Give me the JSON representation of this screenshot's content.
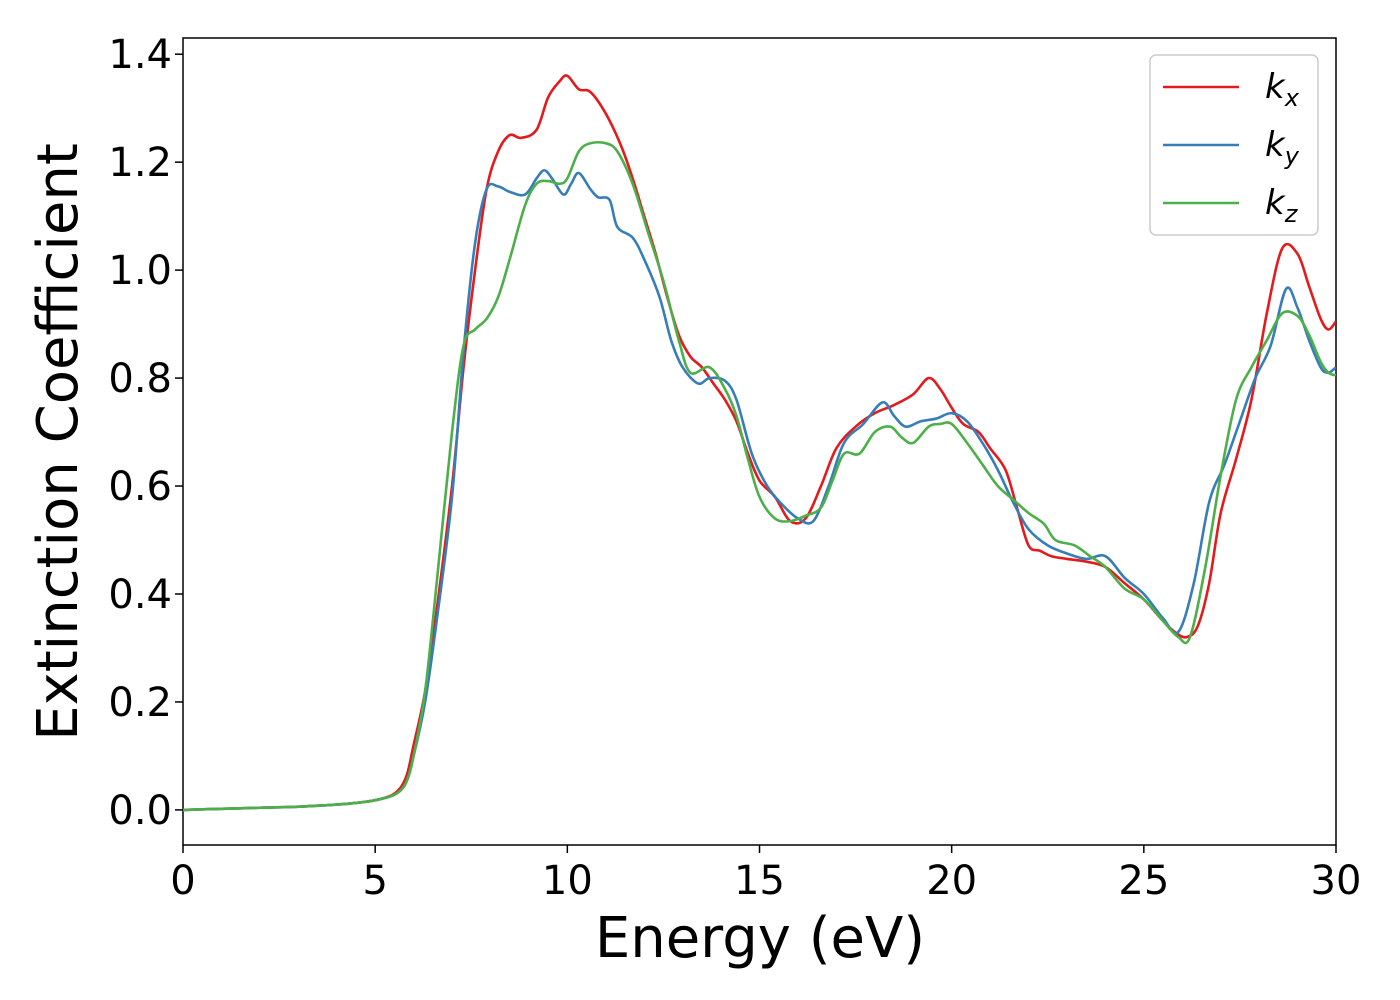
{
  "chart_data": {
    "type": "line",
    "xlabel": "Energy (eV)",
    "ylabel": "Extinction Coefficient",
    "xlim": [
      0,
      30
    ],
    "ylim": [
      -0.065,
      1.43
    ],
    "xticks": [
      0,
      5,
      10,
      15,
      20,
      25,
      30
    ],
    "xtick_labels": [
      "0",
      "5",
      "10",
      "15",
      "20",
      "25",
      "30"
    ],
    "yticks": [
      0.0,
      0.2,
      0.4,
      0.6,
      0.8,
      1.0,
      1.2,
      1.4
    ],
    "ytick_labels": [
      "0.0",
      "0.2",
      "0.4",
      "0.6",
      "0.8",
      "1.0",
      "1.2",
      "1.4"
    ],
    "grid": false,
    "legend_position": "top-right",
    "series": [
      {
        "name": "k",
        "subscript": "x",
        "color": "#e41a1c",
        "points": [
          [
            0,
            0
          ],
          [
            1,
            0.002
          ],
          [
            2,
            0.004
          ],
          [
            3,
            0.006
          ],
          [
            4,
            0.01
          ],
          [
            4.5,
            0.013
          ],
          [
            5,
            0.018
          ],
          [
            5.5,
            0.03
          ],
          [
            5.8,
            0.06
          ],
          [
            6,
            0.12
          ],
          [
            6.3,
            0.22
          ],
          [
            6.6,
            0.37
          ],
          [
            7,
            0.6
          ],
          [
            7.3,
            0.82
          ],
          [
            7.6,
            1.0
          ],
          [
            7.9,
            1.15
          ],
          [
            8.2,
            1.22
          ],
          [
            8.5,
            1.25
          ],
          [
            8.8,
            1.245
          ],
          [
            9.2,
            1.26
          ],
          [
            9.5,
            1.32
          ],
          [
            9.8,
            1.35
          ],
          [
            10.0,
            1.36
          ],
          [
            10.3,
            1.335
          ],
          [
            10.6,
            1.33
          ],
          [
            11.0,
            1.29
          ],
          [
            11.4,
            1.23
          ],
          [
            11.7,
            1.17
          ],
          [
            12.0,
            1.1
          ],
          [
            12.3,
            1.03
          ],
          [
            12.6,
            0.95
          ],
          [
            12.9,
            0.88
          ],
          [
            13.2,
            0.84
          ],
          [
            13.5,
            0.82
          ],
          [
            13.8,
            0.79
          ],
          [
            14.1,
            0.76
          ],
          [
            14.4,
            0.72
          ],
          [
            14.7,
            0.66
          ],
          [
            15.0,
            0.61
          ],
          [
            15.4,
            0.58
          ],
          [
            15.8,
            0.535
          ],
          [
            16.2,
            0.54
          ],
          [
            16.6,
            0.6
          ],
          [
            17.0,
            0.67
          ],
          [
            17.5,
            0.71
          ],
          [
            18.0,
            0.735
          ],
          [
            18.5,
            0.75
          ],
          [
            19.0,
            0.77
          ],
          [
            19.4,
            0.8
          ],
          [
            19.7,
            0.78
          ],
          [
            20.0,
            0.745
          ],
          [
            20.3,
            0.715
          ],
          [
            20.7,
            0.7
          ],
          [
            21.0,
            0.67
          ],
          [
            21.4,
            0.63
          ],
          [
            21.7,
            0.56
          ],
          [
            22.0,
            0.49
          ],
          [
            22.3,
            0.48
          ],
          [
            22.6,
            0.47
          ],
          [
            23.0,
            0.465
          ],
          [
            23.5,
            0.46
          ],
          [
            24.0,
            0.45
          ],
          [
            24.5,
            0.42
          ],
          [
            25.0,
            0.39
          ],
          [
            25.5,
            0.35
          ],
          [
            25.8,
            0.33
          ],
          [
            26.1,
            0.32
          ],
          [
            26.4,
            0.34
          ],
          [
            26.7,
            0.42
          ],
          [
            27.0,
            0.55
          ],
          [
            27.4,
            0.65
          ],
          [
            27.8,
            0.76
          ],
          [
            28.2,
            0.92
          ],
          [
            28.6,
            1.04
          ],
          [
            29.0,
            1.03
          ],
          [
            29.3,
            0.97
          ],
          [
            29.6,
            0.91
          ],
          [
            29.8,
            0.89
          ],
          [
            30.0,
            0.905
          ]
        ]
      },
      {
        "name": "k",
        "subscript": "y",
        "color": "#377eb8",
        "points": [
          [
            0,
            0
          ],
          [
            1,
            0.002
          ],
          [
            2,
            0.004
          ],
          [
            3,
            0.006
          ],
          [
            4,
            0.01
          ],
          [
            4.5,
            0.013
          ],
          [
            5,
            0.018
          ],
          [
            5.5,
            0.028
          ],
          [
            5.8,
            0.05
          ],
          [
            6,
            0.1
          ],
          [
            6.3,
            0.2
          ],
          [
            6.6,
            0.35
          ],
          [
            7,
            0.58
          ],
          [
            7.3,
            0.85
          ],
          [
            7.6,
            1.05
          ],
          [
            7.9,
            1.15
          ],
          [
            8.2,
            1.155
          ],
          [
            8.5,
            1.145
          ],
          [
            8.9,
            1.14
          ],
          [
            9.2,
            1.17
          ],
          [
            9.4,
            1.185
          ],
          [
            9.6,
            1.17
          ],
          [
            9.9,
            1.14
          ],
          [
            10.1,
            1.16
          ],
          [
            10.3,
            1.18
          ],
          [
            10.6,
            1.15
          ],
          [
            10.8,
            1.135
          ],
          [
            11.1,
            1.13
          ],
          [
            11.3,
            1.08
          ],
          [
            11.7,
            1.06
          ],
          [
            12.0,
            1.02
          ],
          [
            12.4,
            0.95
          ],
          [
            12.7,
            0.87
          ],
          [
            13.0,
            0.82
          ],
          [
            13.4,
            0.79
          ],
          [
            13.7,
            0.8
          ],
          [
            14.1,
            0.795
          ],
          [
            14.4,
            0.76
          ],
          [
            14.8,
            0.66
          ],
          [
            15.2,
            0.6
          ],
          [
            15.6,
            0.565
          ],
          [
            16.0,
            0.54
          ],
          [
            16.4,
            0.535
          ],
          [
            16.8,
            0.6
          ],
          [
            17.2,
            0.68
          ],
          [
            17.7,
            0.715
          ],
          [
            18.2,
            0.755
          ],
          [
            18.5,
            0.73
          ],
          [
            18.8,
            0.71
          ],
          [
            19.2,
            0.72
          ],
          [
            19.6,
            0.725
          ],
          [
            20.0,
            0.735
          ],
          [
            20.4,
            0.72
          ],
          [
            20.8,
            0.68
          ],
          [
            21.2,
            0.63
          ],
          [
            21.6,
            0.57
          ],
          [
            22.0,
            0.52
          ],
          [
            22.5,
            0.49
          ],
          [
            23.0,
            0.475
          ],
          [
            23.5,
            0.465
          ],
          [
            24.0,
            0.47
          ],
          [
            24.5,
            0.43
          ],
          [
            25.0,
            0.4
          ],
          [
            25.5,
            0.355
          ],
          [
            25.9,
            0.33
          ],
          [
            26.3,
            0.42
          ],
          [
            26.7,
            0.57
          ],
          [
            27.1,
            0.64
          ],
          [
            27.5,
            0.72
          ],
          [
            27.9,
            0.8
          ],
          [
            28.3,
            0.86
          ],
          [
            28.7,
            0.965
          ],
          [
            29.0,
            0.93
          ],
          [
            29.3,
            0.87
          ],
          [
            29.6,
            0.82
          ],
          [
            29.8,
            0.81
          ],
          [
            30.0,
            0.82
          ]
        ]
      },
      {
        "name": "k",
        "subscript": "z",
        "color": "#4daf4a",
        "points": [
          [
            0,
            0
          ],
          [
            1,
            0.002
          ],
          [
            2,
            0.004
          ],
          [
            3,
            0.006
          ],
          [
            4,
            0.01
          ],
          [
            4.5,
            0.013
          ],
          [
            5,
            0.018
          ],
          [
            5.5,
            0.028
          ],
          [
            5.8,
            0.05
          ],
          [
            6,
            0.1
          ],
          [
            6.3,
            0.22
          ],
          [
            6.6,
            0.42
          ],
          [
            7,
            0.7
          ],
          [
            7.3,
            0.86
          ],
          [
            7.6,
            0.89
          ],
          [
            7.9,
            0.91
          ],
          [
            8.2,
            0.95
          ],
          [
            8.5,
            1.02
          ],
          [
            8.9,
            1.12
          ],
          [
            9.2,
            1.16
          ],
          [
            9.5,
            1.165
          ],
          [
            9.8,
            1.16
          ],
          [
            10.0,
            1.17
          ],
          [
            10.3,
            1.22
          ],
          [
            10.6,
            1.235
          ],
          [
            11.0,
            1.235
          ],
          [
            11.3,
            1.22
          ],
          [
            11.7,
            1.16
          ],
          [
            12.1,
            1.07
          ],
          [
            12.5,
            0.98
          ],
          [
            12.9,
            0.87
          ],
          [
            13.2,
            0.81
          ],
          [
            13.7,
            0.82
          ],
          [
            14.1,
            0.78
          ],
          [
            14.4,
            0.73
          ],
          [
            14.7,
            0.65
          ],
          [
            15.0,
            0.58
          ],
          [
            15.4,
            0.54
          ],
          [
            15.8,
            0.535
          ],
          [
            16.2,
            0.545
          ],
          [
            16.6,
            0.56
          ],
          [
            16.9,
            0.61
          ],
          [
            17.2,
            0.66
          ],
          [
            17.6,
            0.66
          ],
          [
            18.0,
            0.7
          ],
          [
            18.4,
            0.71
          ],
          [
            18.7,
            0.69
          ],
          [
            19.0,
            0.68
          ],
          [
            19.4,
            0.71
          ],
          [
            19.7,
            0.715
          ],
          [
            20.0,
            0.715
          ],
          [
            20.4,
            0.68
          ],
          [
            20.8,
            0.64
          ],
          [
            21.2,
            0.6
          ],
          [
            21.6,
            0.575
          ],
          [
            22.0,
            0.55
          ],
          [
            22.4,
            0.53
          ],
          [
            22.7,
            0.5
          ],
          [
            23.2,
            0.49
          ],
          [
            23.6,
            0.47
          ],
          [
            24.0,
            0.45
          ],
          [
            24.5,
            0.41
          ],
          [
            25.0,
            0.39
          ],
          [
            25.5,
            0.35
          ],
          [
            25.9,
            0.32
          ],
          [
            26.2,
            0.32
          ],
          [
            26.6,
            0.45
          ],
          [
            27.0,
            0.62
          ],
          [
            27.4,
            0.76
          ],
          [
            27.8,
            0.82
          ],
          [
            28.2,
            0.87
          ],
          [
            28.6,
            0.92
          ],
          [
            29.0,
            0.915
          ],
          [
            29.3,
            0.88
          ],
          [
            29.6,
            0.83
          ],
          [
            29.8,
            0.81
          ],
          [
            30.0,
            0.805
          ]
        ]
      }
    ]
  }
}
